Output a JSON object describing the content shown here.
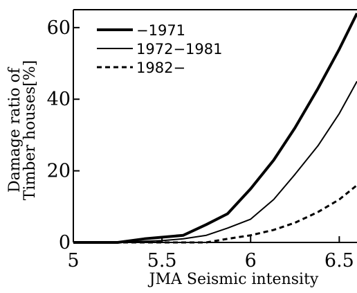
{
  "chart_data": {
    "type": "line",
    "xlabel": "JMA Seismic intensity",
    "ylabel_line1": "Damage ratio of",
    "ylabel_line2": "Timber houses[%]",
    "xlim": [
      5,
      6.6
    ],
    "ylim": [
      0,
      65
    ],
    "x_ticks": [
      5,
      5.5,
      6,
      6.5
    ],
    "x_tick_labels": [
      "5",
      "5.5",
      "6",
      "6.5"
    ],
    "y_ticks": [
      0,
      20,
      40,
      60
    ],
    "y_tick_labels": [
      "0",
      "20",
      "40",
      "60"
    ],
    "grid": false,
    "legend_position": "top-left",
    "series": [
      {
        "name": "−1971",
        "style": "thick-solid",
        "x": [
          5.0,
          5.25,
          5.4,
          5.62,
          5.75,
          5.87,
          6.0,
          6.13,
          6.25,
          6.38,
          6.5,
          6.6
        ],
        "y": [
          0,
          0,
          1,
          2,
          5,
          8,
          15,
          23,
          32,
          43,
          54,
          64
        ]
      },
      {
        "name": "1972−1981",
        "style": "thin-solid",
        "x": [
          5.0,
          5.25,
          5.5,
          5.62,
          5.75,
          5.87,
          6.0,
          6.13,
          6.25,
          6.38,
          6.5,
          6.6
        ],
        "y": [
          0,
          0,
          0.5,
          1,
          2,
          4,
          6.5,
          12,
          19,
          27,
          36,
          45
        ]
      },
      {
        "name": "1982−",
        "style": "dashed",
        "x": [
          5.0,
          5.5,
          5.75,
          5.87,
          6.0,
          6.13,
          6.25,
          6.38,
          6.5,
          6.6
        ],
        "y": [
          0,
          0,
          0,
          1,
          2,
          3.5,
          5.5,
          8.5,
          12,
          16
        ]
      }
    ]
  }
}
